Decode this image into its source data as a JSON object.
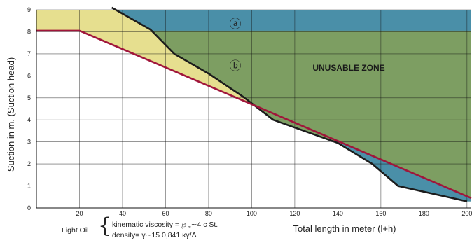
{
  "chart_data": {
    "type": "area",
    "ylabel": "Suction in m. (Suction head)",
    "xlabel": "Total length in meter (l+h)",
    "xlim": [
      0,
      202
    ],
    "ylim": [
      0,
      9
    ],
    "x_ticks": [
      "20",
      "40",
      "60",
      "80",
      "100",
      "120",
      "140",
      "160",
      "180",
      "200"
    ],
    "x_tick_values": [
      20,
      40,
      60,
      80,
      100,
      120,
      140,
      160,
      180,
      200
    ],
    "y_ticks": [
      "0",
      "1",
      "2",
      "3",
      "4",
      "5",
      "6",
      "7",
      "8",
      "9"
    ],
    "y_tick_values": [
      0,
      1,
      2,
      3,
      4,
      5,
      6,
      7,
      8,
      9
    ],
    "series": [
      {
        "role": "boundary-black",
        "color": "#1c1c1c",
        "x": [
          35,
          53,
          64,
          80,
          96,
          110,
          140,
          156,
          168,
          200
        ],
        "y": [
          9.1,
          8.1,
          7.0,
          6.1,
          5.05,
          4.0,
          2.95,
          2.0,
          1.0,
          0.3
        ]
      },
      {
        "role": "boundary-red",
        "color": "#a0153a",
        "x": [
          0,
          20,
          202
        ],
        "y": [
          8.05,
          8.05,
          0.45
        ]
      }
    ],
    "zones": [
      {
        "id": "a",
        "label": "ⓐ",
        "color": "#4a8fa8"
      },
      {
        "id": "b",
        "label": "ⓑ",
        "color": "#7d9e62"
      },
      {
        "id": "light",
        "label": "",
        "color": "#e6df8f"
      }
    ],
    "zone_text": "UNUSABLE ZONE"
  },
  "notes": {
    "fluid": "Light Oil",
    "brace": "{",
    "line1": "kinematic viscosity = ℘  „∼4 c St.",
    "line2": "density=  γ∼15  0,841 κγ/Λ"
  }
}
